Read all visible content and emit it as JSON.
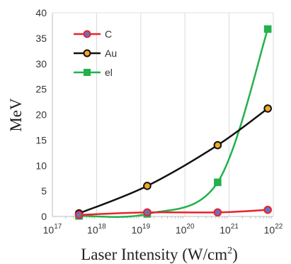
{
  "chart_data": {
    "type": "line",
    "title": "",
    "xlabel": "Laser Intensity (W/cm",
    "xlabel_sup": "2",
    "xlabel_end": ")",
    "ylabel": "MeV",
    "x_scale": "log",
    "xlim": [
      1e+17,
      1e+22
    ],
    "ylim": [
      0,
      40
    ],
    "y_ticks": [
      0,
      5,
      10,
      15,
      20,
      25,
      30,
      35,
      40
    ],
    "x_ticks": [
      {
        "value": 1e+17,
        "base": "10",
        "exp": "17"
      },
      {
        "value": 1e+18,
        "base": "10",
        "exp": "18"
      },
      {
        "value": 1e+19,
        "base": "10",
        "exp": "19"
      },
      {
        "value": 1e+20,
        "base": "10",
        "exp": "20"
      },
      {
        "value": 1e+21,
        "base": "10",
        "exp": "21"
      },
      {
        "value": 1e+22,
        "base": "10",
        "exp": "22"
      }
    ],
    "grid": "vertical",
    "legend_position": "top-left",
    "series": [
      {
        "name": "C",
        "color": "#e8232a",
        "marker": "circle",
        "marker_fill": "#6a6fc0",
        "curve": "smooth",
        "points": [
          [
            4e+17,
            0.3
          ],
          [
            1.4e+19,
            0.8
          ],
          [
            5.5e+20,
            0.8
          ],
          [
            7.5e+21,
            1.3
          ]
        ]
      },
      {
        "name": "Au",
        "color": "#111111",
        "marker": "circle",
        "marker_fill": "#f5a623",
        "curve": "smooth",
        "points": [
          [
            4e+17,
            0.6
          ],
          [
            1.4e+19,
            6.0
          ],
          [
            5.5e+20,
            14.0
          ],
          [
            7.5e+21,
            21.2
          ]
        ]
      },
      {
        "name": "el",
        "color": "#22b14c",
        "marker": "square",
        "marker_fill": "#22b14c",
        "curve": "smooth",
        "points": [
          [
            4e+17,
            0.1
          ],
          [
            1.4e+19,
            0.5
          ],
          [
            5.5e+20,
            6.7
          ],
          [
            7.5e+21,
            36.8
          ]
        ]
      }
    ]
  }
}
